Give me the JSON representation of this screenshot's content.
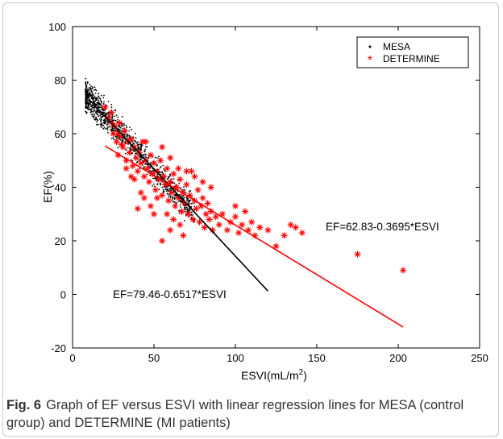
{
  "caption": {
    "label": "Fig. 6",
    "text": "Graph of EF versus ESVI with linear regression lines for MESA (control group) and DETERMINE (MI patients)"
  },
  "chart_data": {
    "type": "scatter",
    "xlabel": "ESVI(mL/m",
    "xlabel_sup": "2",
    "xlabel_end": ")",
    "ylabel": "EF(%)",
    "xlim": [
      0,
      250
    ],
    "ylim": [
      -20,
      100
    ],
    "xticks": [
      0,
      50,
      100,
      150,
      200,
      250
    ],
    "yticks": [
      -20,
      0,
      20,
      40,
      60,
      80,
      100
    ],
    "grid": false,
    "legend_position": "top-right",
    "series": [
      {
        "name": "MESA",
        "marker": "dot",
        "color": "#000000",
        "cloud": {
          "x_range": [
            8,
            75
          ],
          "center_regression": [
            79.46,
            -0.6517
          ],
          "noise": 4,
          "count": 1100
        },
        "regression": {
          "label": "EF=79.46-0.6517*ESVI",
          "intercept": 79.46,
          "slope": -0.6517,
          "x_range": [
            10,
            120
          ]
        }
      },
      {
        "name": "DETERMINE",
        "marker": "asterisk",
        "color": "#ff0000",
        "points": [
          [
            20,
            70
          ],
          [
            22,
            66
          ],
          [
            24,
            68
          ],
          [
            25,
            60
          ],
          [
            26,
            63
          ],
          [
            27,
            57
          ],
          [
            28,
            52
          ],
          [
            29,
            64
          ],
          [
            30,
            59
          ],
          [
            31,
            55
          ],
          [
            32,
            61
          ],
          [
            33,
            50
          ],
          [
            34,
            57
          ],
          [
            35,
            53
          ],
          [
            36,
            58
          ],
          [
            37,
            48
          ],
          [
            38,
            55
          ],
          [
            39,
            51
          ],
          [
            40,
            46
          ],
          [
            41,
            53
          ],
          [
            42,
            49
          ],
          [
            43,
            57
          ],
          [
            44,
            44
          ],
          [
            45,
            50
          ],
          [
            46,
            47
          ],
          [
            47,
            42
          ],
          [
            48,
            52
          ],
          [
            49,
            45
          ],
          [
            50,
            49
          ],
          [
            51,
            39
          ],
          [
            52,
            46
          ],
          [
            53,
            43
          ],
          [
            54,
            50
          ],
          [
            55,
            37
          ],
          [
            56,
            44
          ],
          [
            57,
            41
          ],
          [
            58,
            47
          ],
          [
            59,
            35
          ],
          [
            60,
            42
          ],
          [
            61,
            38
          ],
          [
            62,
            45
          ],
          [
            63,
            33
          ],
          [
            64,
            40
          ],
          [
            65,
            36
          ],
          [
            66,
            43
          ],
          [
            67,
            31
          ],
          [
            68,
            38
          ],
          [
            69,
            34
          ],
          [
            70,
            41
          ],
          [
            71,
            30
          ],
          [
            72,
            37
          ],
          [
            73,
            46
          ],
          [
            74,
            28
          ],
          [
            75,
            35
          ],
          [
            76,
            32
          ],
          [
            77,
            39
          ],
          [
            78,
            27
          ],
          [
            79,
            33
          ],
          [
            80,
            36
          ],
          [
            81,
            25
          ],
          [
            82,
            30
          ],
          [
            83,
            34
          ],
          [
            84,
            28
          ],
          [
            85,
            31
          ],
          [
            86,
            24
          ],
          [
            88,
            29
          ],
          [
            90,
            26
          ],
          [
            92,
            30
          ],
          [
            95,
            24
          ],
          [
            97,
            27
          ],
          [
            100,
            33
          ],
          [
            100,
            29
          ],
          [
            102,
            23
          ],
          [
            104,
            26
          ],
          [
            106,
            31
          ],
          [
            108,
            24
          ],
          [
            110,
            27
          ],
          [
            112,
            22
          ],
          [
            115,
            25
          ],
          [
            120,
            24
          ],
          [
            125,
            18
          ],
          [
            130,
            22
          ],
          [
            134,
            26
          ],
          [
            137,
            25
          ],
          [
            141,
            23
          ],
          [
            45,
            57
          ],
          [
            55,
            55
          ],
          [
            60,
            51
          ],
          [
            65,
            47
          ],
          [
            70,
            46
          ],
          [
            75,
            44
          ],
          [
            80,
            42
          ],
          [
            85,
            40
          ],
          [
            38,
            43
          ],
          [
            42,
            38
          ],
          [
            48,
            33
          ],
          [
            52,
            36
          ],
          [
            58,
            30
          ],
          [
            62,
            28
          ],
          [
            66,
            26
          ],
          [
            50,
            30
          ],
          [
            55,
            20
          ],
          [
            60,
            24
          ],
          [
            68,
            22
          ],
          [
            36,
            44
          ],
          [
            40,
            32
          ],
          [
            44,
            36
          ],
          [
            33,
            47
          ],
          [
            30,
            56
          ],
          [
            28,
            60
          ],
          [
            24,
            64
          ],
          [
            175,
            15
          ],
          [
            203,
            9
          ]
        ],
        "regression": {
          "label": "EF=62.83-0.3695*ESVI",
          "intercept": 62.83,
          "slope": -0.3695,
          "x_range": [
            20,
            203
          ]
        }
      }
    ]
  }
}
